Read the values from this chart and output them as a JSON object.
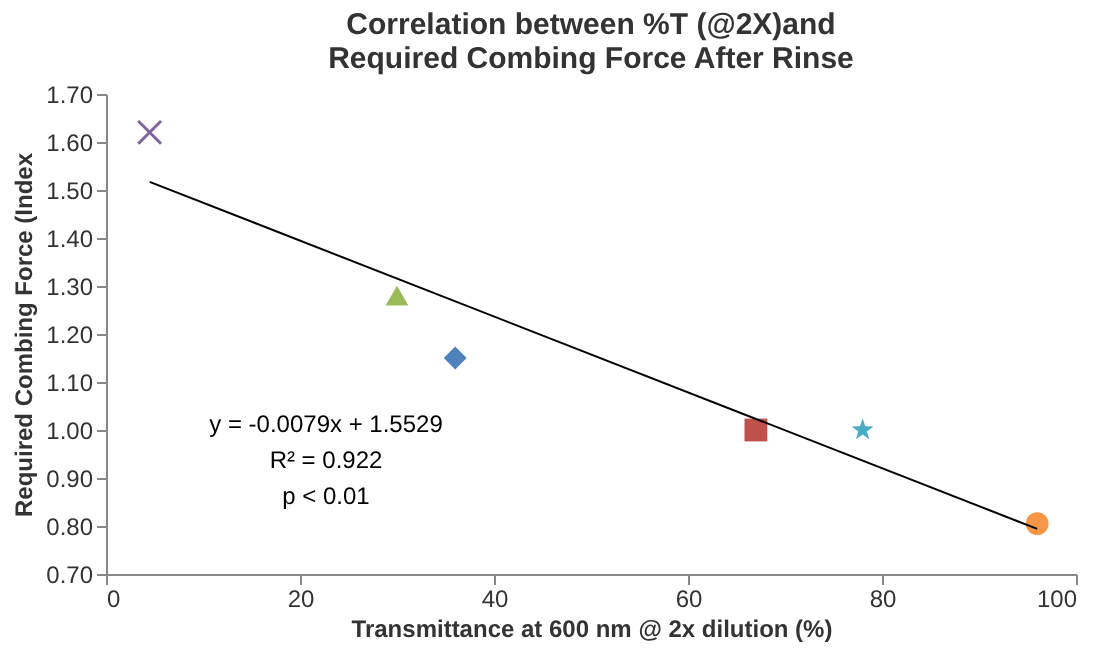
{
  "chart_data": {
    "type": "scatter",
    "title": [
      "Correlation between %T (@2X)and",
      "Required Combing Force After Rinse"
    ],
    "xlabel": "Transmittance at 600 nm @ 2x dilution (%)",
    "ylabel": "Required Combing Force (Index",
    "series": [
      {
        "color": "#8064a2",
        "marker": "cross",
        "x": [
          4.5
        ],
        "values": [
          1.62
        ]
      },
      {
        "color": "#9bbb59",
        "marker": "triangle",
        "x": [
          30
        ],
        "values": [
          1.28
        ]
      },
      {
        "color": "#4f81bd",
        "marker": "diamond",
        "x": [
          36
        ],
        "values": [
          1.15
        ]
      },
      {
        "color": "#c0504d",
        "marker": "square",
        "x": [
          67
        ],
        "values": [
          1.0
        ]
      },
      {
        "color": "#4bacc6",
        "marker": "star",
        "x": [
          78
        ],
        "values": [
          1.0
        ]
      },
      {
        "color": "#f79646",
        "marker": "circle",
        "x": [
          96
        ],
        "values": [
          0.805
        ]
      },
      {
        "type": "line",
        "color": "#000000",
        "line_style": "solid",
        "x": [
          4.5,
          96
        ],
        "values": [
          1.517,
          0.794
        ]
      }
    ],
    "annotations": [
      "y = -0.0079x + 1.5529",
      "R² = 0.922",
      "p < 0.01"
    ],
    "xlim": [
      0,
      100
    ],
    "xticks": [
      0,
      20,
      40,
      60,
      80,
      100
    ],
    "ylim": [
      0.7,
      1.7
    ],
    "yticks": [
      {
        "value": 0.7,
        "label": "0.70"
      },
      {
        "value": 0.8,
        "label": "0.80"
      },
      {
        "value": 0.9,
        "label": "0.90"
      },
      {
        "value": 1.0,
        "label": "1.00"
      },
      {
        "value": 1.1,
        "label": "1.10"
      },
      {
        "value": 1.2,
        "label": "1.20"
      },
      {
        "value": 1.3,
        "label": "1.30"
      },
      {
        "value": 1.4,
        "label": "1.40"
      },
      {
        "value": 1.5,
        "label": "1.50"
      },
      {
        "value": 1.6,
        "label": "1.60"
      },
      {
        "value": 1.7,
        "label": "1.70"
      }
    ],
    "grid": false
  }
}
